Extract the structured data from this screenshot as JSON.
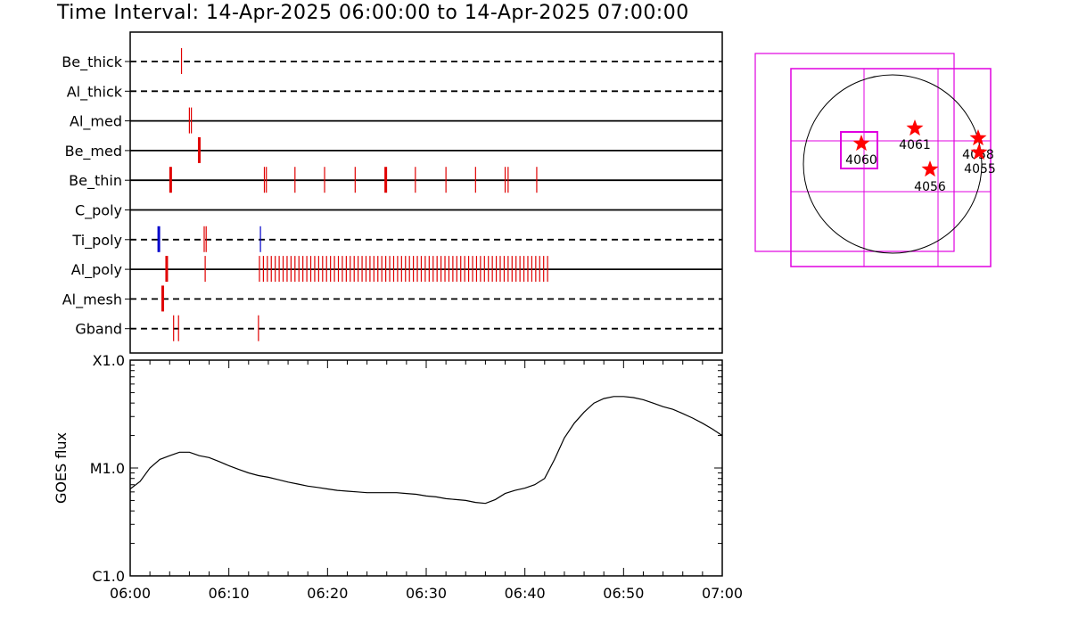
{
  "title": "Time Interval: 14-Apr-2025 06:00:00 to 14-Apr-2025 07:00:00",
  "colors": {
    "flare_event": "#e00000",
    "blue_event": "#0000cc",
    "box": "#e000e0",
    "star": "#ff0000",
    "line": "#000000"
  },
  "chart_data": [
    {
      "type": "event_timeline",
      "x_range": [
        "06:00",
        "07:00"
      ],
      "rows": [
        {
          "label": "Be_thick",
          "line_style": "dashed",
          "events": [
            {
              "t": 5.2,
              "thick": false
            }
          ]
        },
        {
          "label": "Al_thick",
          "line_style": "dashed",
          "events": []
        },
        {
          "label": "Al_med",
          "line_style": "solid",
          "events": [
            {
              "t": 6.0,
              "thick": false
            },
            {
              "t": 6.2,
              "thick": false
            }
          ]
        },
        {
          "label": "Be_med",
          "line_style": "solid",
          "events": [
            {
              "t": 7.0,
              "thick": true
            }
          ]
        },
        {
          "label": "Be_thin",
          "line_style": "solid",
          "events": [
            {
              "t": 4.1,
              "thick": true
            },
            {
              "t": 13.6,
              "thick": false
            },
            {
              "t": 13.8,
              "thick": false
            },
            {
              "t": 16.7,
              "thick": false
            },
            {
              "t": 19.7,
              "thick": false
            },
            {
              "t": 22.8,
              "thick": false
            },
            {
              "t": 25.9,
              "thick": true
            },
            {
              "t": 28.9,
              "thick": false
            },
            {
              "t": 32.0,
              "thick": false
            },
            {
              "t": 35.0,
              "thick": false
            },
            {
              "t": 38.0,
              "thick": false
            },
            {
              "t": 38.3,
              "thick": false
            },
            {
              "t": 41.2,
              "thick": false
            }
          ]
        },
        {
          "label": "C_poly",
          "line_style": "solid",
          "events": []
        },
        {
          "label": "Ti_poly",
          "line_style": "dashed",
          "events": [
            {
              "t": 2.9,
              "thick": true,
              "color": "blue"
            },
            {
              "t": 7.5,
              "thick": false
            },
            {
              "t": 7.7,
              "thick": false
            },
            {
              "t": 13.2,
              "thick": false,
              "color": "blue"
            }
          ]
        },
        {
          "label": "Al_poly",
          "line_style": "solid",
          "events": [
            {
              "t": 3.7,
              "thick": true
            },
            {
              "t": 7.6,
              "thick": false
            }
          ],
          "dense_events": {
            "start": 13.1,
            "end": 42.4,
            "step": 0.4
          }
        },
        {
          "label": "Al_mesh",
          "line_style": "dashed",
          "events": [
            {
              "t": 3.3,
              "thick": true
            }
          ]
        },
        {
          "label": "Gband",
          "line_style": "dashed",
          "events": [
            {
              "t": 4.4,
              "thick": false
            },
            {
              "t": 4.9,
              "thick": false
            },
            {
              "t": 13.0,
              "thick": false
            }
          ]
        }
      ]
    },
    {
      "type": "line",
      "ylabel": "GOES flux",
      "ylog": true,
      "ylim": [
        1e-06,
        0.0001
      ],
      "yticks": [
        {
          "value": 0.0001,
          "label": "X1.0"
        },
        {
          "value": 1e-05,
          "label": "M1.0"
        },
        {
          "value": 1e-06,
          "label": "C1.0"
        }
      ],
      "xlim": [
        "06:00",
        "07:00"
      ],
      "xticks": [
        "06:00",
        "06:10",
        "06:20",
        "06:30",
        "06:40",
        "06:50",
        "07:00"
      ],
      "x_minutes": [
        0,
        1,
        2,
        3,
        4,
        5,
        6,
        7,
        8,
        9,
        10,
        11,
        12,
        13,
        14,
        15,
        16,
        17,
        18,
        19,
        20,
        21,
        22,
        23,
        24,
        25,
        26,
        27,
        28,
        29,
        30,
        31,
        32,
        33,
        34,
        35,
        36,
        37,
        38,
        39,
        40,
        41,
        42,
        43,
        44,
        45,
        46,
        47,
        48,
        49,
        50,
        51,
        52,
        53,
        54,
        55,
        56,
        57,
        58,
        59,
        60
      ],
      "y": [
        6.4e-06,
        7.5e-06,
        1e-05,
        1.2e-05,
        1.3e-05,
        1.4e-05,
        1.4e-05,
        1.3e-05,
        1.25e-05,
        1.15e-05,
        1.05e-05,
        9.7e-06,
        9e-06,
        8.5e-06,
        8.2e-06,
        7.8e-06,
        7.4e-06,
        7.1e-06,
        6.8e-06,
        6.6e-06,
        6.4e-06,
        6.2e-06,
        6.1e-06,
        6e-06,
        5.9e-06,
        5.9e-06,
        5.9e-06,
        5.9e-06,
        5.8e-06,
        5.7e-06,
        5.5e-06,
        5.4e-06,
        5.2e-06,
        5.1e-06,
        5e-06,
        4.8e-06,
        4.7e-06,
        5.1e-06,
        5.8e-06,
        6.2e-06,
        6.5e-06,
        7e-06,
        8e-06,
        1.2e-05,
        1.9e-05,
        2.6e-05,
        3.3e-05,
        4e-05,
        4.4e-05,
        4.6e-05,
        4.6e-05,
        4.5e-05,
        4.3e-05,
        4e-05,
        3.7e-05,
        3.5e-05,
        3.2e-05,
        2.9e-05,
        2.6e-05,
        2.3e-05,
        2e-05
      ]
    }
  ],
  "map": {
    "active_regions": [
      {
        "label": "4060"
      },
      {
        "label": "4061"
      },
      {
        "label": "4058"
      },
      {
        "label": "4055"
      },
      {
        "label": "4056"
      }
    ]
  }
}
